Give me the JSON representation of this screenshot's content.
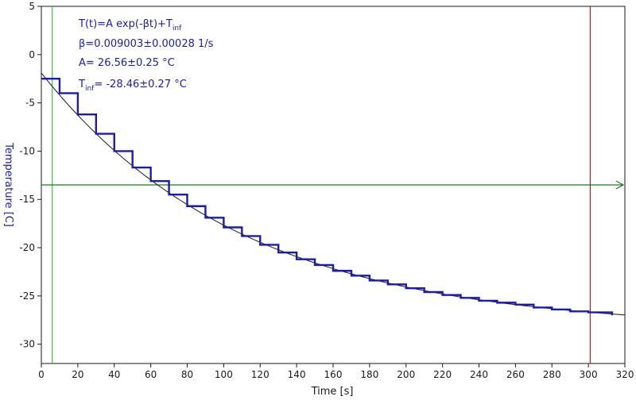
{
  "chart_data": {
    "type": "line",
    "xlabel": "Time [s]",
    "ylabel": "Temperature [C]",
    "xlim": [
      0,
      320
    ],
    "ylim": [
      -32,
      5
    ],
    "x_ticks": [
      0,
      20,
      40,
      60,
      80,
      100,
      120,
      140,
      160,
      180,
      200,
      220,
      240,
      260,
      280,
      300,
      320
    ],
    "y_ticks": [
      5,
      0,
      -5,
      -10,
      -15,
      -20,
      -25,
      -30
    ],
    "fit": {
      "model": "T(t)=A exp(-βt)+T_inf",
      "beta": 0.009003,
      "A": 26.56,
      "T_inf": -28.46
    },
    "series": [
      {
        "x": [
          0,
          5,
          10,
          20,
          30,
          40,
          50,
          60,
          70,
          80,
          90,
          100,
          110,
          120,
          130,
          140,
          150,
          160,
          170,
          180,
          190,
          200,
          210,
          220,
          230,
          240,
          250,
          260,
          270,
          280,
          290,
          300,
          313
        ],
        "values": [
          -2.5,
          -2.5,
          -4.0,
          -6.2,
          -8.2,
          -10.0,
          -11.7,
          -13.1,
          -14.5,
          -15.7,
          -16.9,
          -17.9,
          -18.8,
          -19.7,
          -20.5,
          -21.2,
          -21.8,
          -22.4,
          -22.9,
          -23.4,
          -23.8,
          -24.2,
          -24.6,
          -24.9,
          -25.2,
          -25.5,
          -25.7,
          -25.9,
          -26.2,
          -26.4,
          -26.6,
          -26.7,
          -27.0
        ]
      }
    ],
    "cursors": {
      "x1": 6,
      "x2": 301,
      "y": -13.5
    },
    "colors": {
      "data": "#1b1bb4",
      "fit": "#1a1a1a",
      "cursor_left": "#33cc33",
      "cursor_right": "#b22222",
      "cursor_horizontal": "#1a7a1a",
      "axis_title": "#1b1bb4",
      "ylabel": "#1b1bb4"
    },
    "annotations": {
      "line1_main": "T(t)=A exp(-βt)+T",
      "line1_sub": "inf",
      "line2": "β=0.009003±0.00028 1/s",
      "line3": "A= 26.56±0.25 °C",
      "line4_main": "T",
      "line4_sub": "inf",
      "line4_rest": "= -28.46±0.27 °C"
    }
  }
}
